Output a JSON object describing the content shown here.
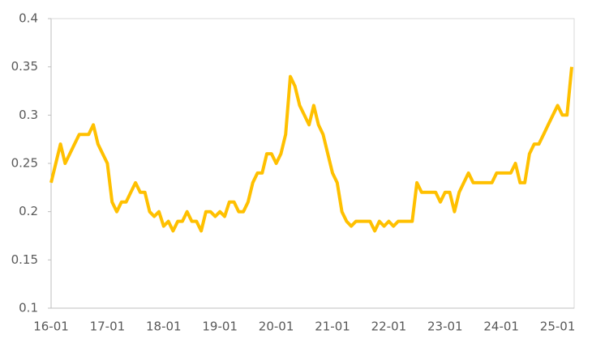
{
  "chart_data": {
    "type": "line",
    "x": [
      "16-01",
      "16-02",
      "16-03",
      "16-04",
      "16-05",
      "16-06",
      "16-07",
      "16-08",
      "16-09",
      "16-10",
      "16-11",
      "16-12",
      "17-01",
      "17-02",
      "17-03",
      "17-04",
      "17-05",
      "17-06",
      "17-07",
      "17-08",
      "17-09",
      "17-10",
      "17-11",
      "17-12",
      "18-01",
      "18-02",
      "18-03",
      "18-04",
      "18-05",
      "18-06",
      "18-07",
      "18-08",
      "18-09",
      "18-10",
      "18-11",
      "18-12",
      "19-01",
      "19-02",
      "19-03",
      "19-04",
      "19-05",
      "19-06",
      "19-07",
      "19-08",
      "19-09",
      "19-10",
      "19-11",
      "19-12",
      "20-01",
      "20-02",
      "20-03",
      "20-04",
      "20-05",
      "20-06",
      "20-07",
      "20-08",
      "20-09",
      "20-10",
      "20-11",
      "20-12",
      "21-01",
      "21-02",
      "21-03",
      "21-04",
      "21-05",
      "21-06",
      "21-07",
      "21-08",
      "21-09",
      "21-10",
      "21-11",
      "21-12",
      "22-01",
      "22-02",
      "22-03",
      "22-04",
      "22-05",
      "22-06",
      "22-07",
      "22-08",
      "22-09",
      "22-10",
      "22-11",
      "22-12",
      "23-01",
      "23-02",
      "23-03",
      "23-04",
      "23-05",
      "23-06",
      "23-07",
      "23-08",
      "23-09",
      "23-10",
      "23-11",
      "23-12",
      "24-01",
      "24-02",
      "24-03",
      "24-04",
      "24-05",
      "24-06",
      "24-07",
      "24-08",
      "24-09",
      "24-10",
      "24-11",
      "24-12",
      "25-01",
      "25-02",
      "25-03",
      "25-04"
    ],
    "series": [
      {
        "color": "#FFC000",
        "values": [
          0.23,
          0.25,
          0.27,
          0.25,
          0.26,
          0.27,
          0.28,
          0.28,
          0.28,
          0.29,
          0.27,
          0.26,
          0.25,
          0.21,
          0.2,
          0.21,
          0.21,
          0.22,
          0.23,
          0.22,
          0.22,
          0.2,
          0.195,
          0.2,
          0.185,
          0.19,
          0.18,
          0.19,
          0.19,
          0.2,
          0.19,
          0.19,
          0.18,
          0.2,
          0.2,
          0.195,
          0.2,
          0.195,
          0.21,
          0.21,
          0.2,
          0.2,
          0.21,
          0.23,
          0.24,
          0.24,
          0.26,
          0.26,
          0.25,
          0.26,
          0.28,
          0.34,
          0.33,
          0.31,
          0.3,
          0.29,
          0.31,
          0.29,
          0.28,
          0.26,
          0.24,
          0.23,
          0.2,
          0.19,
          0.185,
          0.19,
          0.19,
          0.19,
          0.19,
          0.18,
          0.19,
          0.185,
          0.19,
          0.185,
          0.19,
          0.19,
          0.19,
          0.19,
          0.23,
          0.22,
          0.22,
          0.22,
          0.22,
          0.21,
          0.22,
          0.22,
          0.2,
          0.22,
          0.23,
          0.24,
          0.23,
          0.23,
          0.23,
          0.23,
          0.23,
          0.24,
          0.24,
          0.24,
          0.24,
          0.25,
          0.23,
          0.23,
          0.26,
          0.27,
          0.27,
          0.28,
          0.29,
          0.3,
          0.31,
          0.3,
          0.3,
          0.35
        ]
      }
    ],
    "xticks": [
      "16-01",
      "17-01",
      "18-01",
      "19-01",
      "20-01",
      "21-01",
      "22-01",
      "23-01",
      "24-01",
      "25-01"
    ],
    "ylim": [
      0.1,
      0.4
    ],
    "yticks": [
      0.1,
      0.15,
      0.2,
      0.25,
      0.3,
      0.35,
      0.4
    ]
  }
}
